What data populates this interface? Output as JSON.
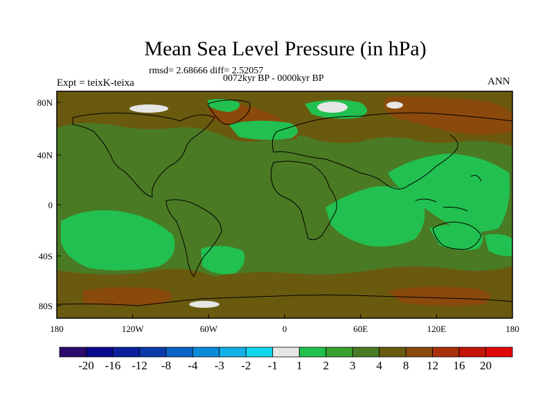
{
  "map": {
    "title": "Mean Sea Level Pressure (in hPa)",
    "stats": "rmsd= 2.68666 diff= 2.52057",
    "period": "0072kyr BP - 0000kyr BP",
    "experiment": "Expt = teixK-teixa",
    "season": "ANN",
    "lat_labels": [
      "80N",
      "40N",
      "0",
      "40S",
      "80S"
    ],
    "lon_labels": [
      "180",
      "120W",
      "60W",
      "0",
      "60E",
      "120E",
      "180"
    ],
    "colors": {
      "frame": "#000000",
      "coast": "#000000"
    }
  },
  "colorbar": {
    "labels": [
      "-20",
      "-16",
      "-12",
      "-8",
      "-4",
      "-3",
      "-2",
      "-1",
      "1",
      "2",
      "3",
      "4",
      "8",
      "12",
      "16",
      "20"
    ],
    "colors": [
      "#2a0a6a",
      "#0a0a8c",
      "#0a1f9c",
      "#0a3aa8",
      "#0a62c4",
      "#0a8ad8",
      "#12b0e6",
      "#12d6ee",
      "#e6e6e6",
      "#22c050",
      "#3aa030",
      "#4a7a24",
      "#6a5a10",
      "#8a4a0c",
      "#a8300a",
      "#c41408",
      "#de0808"
    ]
  }
}
